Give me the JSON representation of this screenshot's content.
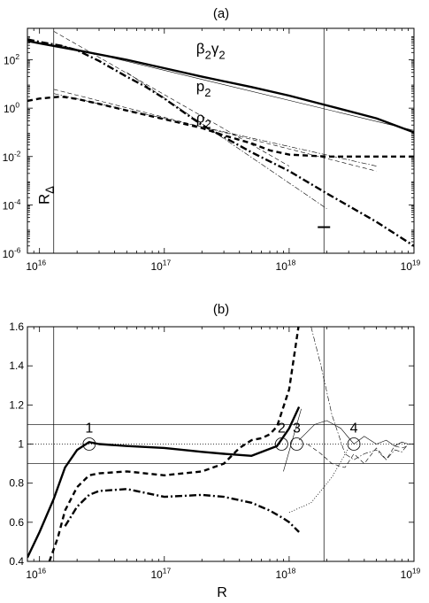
{
  "chart_data": [
    {
      "type": "line",
      "title": "(a)",
      "xscale": "log",
      "yscale": "log",
      "xlim": [
        8000000000000000.0,
        1e+19
      ],
      "ylim": [
        1e-06,
        2000.0
      ],
      "xticks": [
        1e+16,
        1e+17,
        1e+18,
        1e+19
      ],
      "xtick_labels": [
        [
          "10",
          "16"
        ],
        [
          "10",
          "17"
        ],
        [
          "10",
          "18"
        ],
        [
          "10",
          "19"
        ]
      ],
      "yticks": [
        1e-06,
        0.0001,
        0.01,
        1,
        100
      ],
      "ytick_labels": [
        [
          "10",
          "-6"
        ],
        [
          "10",
          "-4"
        ],
        [
          "10",
          "-2"
        ],
        [
          "10",
          "0"
        ],
        [
          "10",
          "2"
        ]
      ],
      "vlines": [
        1.3e+16,
        1.9e+18
      ],
      "series": [
        {
          "name": "β2γ2",
          "style": "solid-thick",
          "x": [
            8000000000000000.0,
            1e+16,
            2e+16,
            5e+16,
            1e+17,
            2e+17,
            5e+17,
            1e+18,
            2e+18,
            5e+18,
            1e+19
          ],
          "y": [
            600,
            480,
            250,
            100,
            45,
            20,
            7.5,
            3.3,
            1.3,
            0.38,
            0.1
          ]
        },
        {
          "name": "β2γ2 asymptote",
          "style": "thin",
          "x": [
            1.4e+16,
            1e+19
          ],
          "y": [
            420,
            0.12
          ]
        },
        {
          "name": "p2",
          "style": "dashdot-thick",
          "x": [
            8000000000000000.0,
            1e+16,
            1.5e+16,
            2e+16,
            3e+16,
            5e+16,
            7e+16,
            1e+17,
            2e+17,
            5e+17,
            1e+18,
            2e+18,
            5e+18,
            1e+19
          ],
          "y": [
            700,
            550,
            380,
            250,
            90,
            20,
            8,
            2.5,
            0.2,
            0.015,
            0.0025,
            0.0003,
            2e-05,
            2e-06
          ]
        },
        {
          "name": "p2 asymptote",
          "style": "thin-dash",
          "x": [
            1.3e+16,
            1e+18
          ],
          "y": [
            1500,
            0.004
          ]
        },
        {
          "name": "p2 asymptote 2",
          "style": "thin-dashdot",
          "x": [
            5e+16,
            2e+18
          ],
          "y": [
            30,
            7e-05
          ]
        },
        {
          "name": "ρ2",
          "style": "dashed-thick",
          "x": [
            8000000000000000.0,
            1e+16,
            1.5e+16,
            2e+16,
            3e+16,
            5e+16,
            1e+17,
            2e+17,
            3e+17,
            5e+17,
            7e+17,
            1e+18,
            2e+18,
            5e+18,
            1e+19
          ],
          "y": [
            2,
            2.5,
            3,
            2.4,
            1.5,
            0.8,
            0.35,
            0.15,
            0.075,
            0.035,
            0.018,
            0.012,
            0.01,
            0.01,
            0.01
          ]
        },
        {
          "name": "ρ2 asymptote",
          "style": "thin-dash",
          "x": [
            1.3e+16,
            5e+18
          ],
          "y": [
            6,
            0.0025
          ]
        },
        {
          "name": "ρ2 asymptote 2",
          "style": "thin-dashdot",
          "x": [
            1.3e+16,
            5e+18
          ],
          "y": [
            4,
            0.004
          ]
        }
      ],
      "labels": [
        {
          "text": "β",
          "sub": "2",
          "text2": "γ",
          "sub2": "2",
          "x": 1.8e+17,
          "y": 180
        },
        {
          "text": "p",
          "sub": "2",
          "x": 1.8e+17,
          "y": 5
        },
        {
          "text": "ρ",
          "sub": "2",
          "x": 1.8e+17,
          "y": 0.25
        }
      ],
      "marker": {
        "x": 1.9e+18,
        "y": 1.2e-05
      },
      "rdelta_label": {
        "text": "R",
        "sub": "Δ"
      }
    },
    {
      "type": "line",
      "title": "(b)",
      "xlabel": "R",
      "xscale": "log",
      "yscale": "linear",
      "xlim": [
        8000000000000000.0,
        1e+19
      ],
      "ylim": [
        0.4,
        1.6
      ],
      "xticks": [
        1e+16,
        1e+17,
        1e+18,
        1e+19
      ],
      "xtick_labels": [
        [
          "10",
          "16"
        ],
        [
          "10",
          "17"
        ],
        [
          "10",
          "18"
        ],
        [
          "10",
          "19"
        ]
      ],
      "yticks": [
        0.4,
        0.6,
        0.8,
        1.0,
        1.2,
        1.4,
        1.6
      ],
      "ytick_labels": [
        "0.4",
        "0.6",
        "0.8",
        "1",
        "1.2",
        "1.4",
        "1.6"
      ],
      "vlines": [
        1.3e+16,
        1.9e+18
      ],
      "hlines": [
        {
          "y": 1.1,
          "style": "thin"
        },
        {
          "y": 1.0,
          "style": "dotted"
        },
        {
          "y": 0.9,
          "style": "thin"
        }
      ],
      "series": [
        {
          "name": "solid",
          "style": "solid-thick",
          "x": [
            8000000000000000.0,
            1e+16,
            1.3e+16,
            1.6e+16,
            2e+16,
            2.5e+16,
            3e+16,
            5e+16,
            1e+17,
            2e+17,
            3e+17,
            5e+17,
            8e+17,
            1e+18,
            1.2e+18
          ],
          "y": [
            0.42,
            0.55,
            0.72,
            0.88,
            0.97,
            1.01,
            1.0,
            0.99,
            0.98,
            0.96,
            0.95,
            0.94,
            0.99,
            1.08,
            1.19
          ]
        },
        {
          "name": "dashed",
          "style": "dashed-thick",
          "x": [
            1.2e+16,
            1.4e+16,
            1.6e+16,
            2e+16,
            2.5e+16,
            3e+16,
            5e+16,
            1e+17,
            2e+17,
            3e+17,
            4e+17,
            5e+17,
            6e+17,
            7e+17,
            8e+17,
            1e+18,
            1.2e+18
          ],
          "y": [
            0.4,
            0.52,
            0.66,
            0.78,
            0.84,
            0.85,
            0.86,
            0.84,
            0.86,
            0.9,
            0.98,
            1.02,
            1.03,
            1.05,
            1.09,
            1.28,
            1.62
          ]
        },
        {
          "name": "dashdot",
          "style": "dashdot-thick",
          "x": [
            1.6e+16,
            2e+16,
            2.5e+16,
            3e+16,
            5e+16,
            1e+17,
            2e+17,
            3e+17,
            5e+17,
            7e+17,
            9e+17,
            1e+18,
            1.2e+18
          ],
          "y": [
            0.58,
            0.68,
            0.74,
            0.76,
            0.77,
            0.73,
            0.74,
            0.73,
            0.7,
            0.66,
            0.62,
            0.6,
            0.55
          ]
        },
        {
          "name": "thin dashdot",
          "style": "thin-dashdot",
          "x": [
            1.5e+18,
            1.8e+18,
            2.2e+18,
            2.8e+18,
            3.3e+18,
            4e+18,
            5e+18,
            6e+18,
            7e+18,
            8e+18,
            9e+18
          ],
          "y": [
            1.6,
            1.4,
            1.15,
            0.95,
            0.92,
            0.95,
            0.97,
            0.92,
            0.97,
            0.96,
            1.0
          ]
        },
        {
          "name": "thin dashed",
          "style": "thin-dash",
          "x": [
            1.4e+18,
            1.8e+18,
            2.2e+18,
            2.8e+18,
            3.3e+18,
            4e+18,
            5e+18,
            6e+18,
            7e+18,
            8e+18,
            9e+18
          ],
          "y": [
            1.0,
            0.95,
            0.9,
            0.88,
            0.95,
            0.9,
            0.98,
            0.92,
            0.99,
            0.98,
            0.99
          ]
        },
        {
          "name": "thin solid",
          "style": "thin",
          "x": [
            1.2e+18,
            1.6e+18,
            2e+18,
            2.6e+18,
            3.3e+18,
            4e+18,
            5e+18,
            6e+18,
            7e+18,
            8e+18,
            9e+18
          ],
          "y": [
            1.02,
            1.1,
            1.12,
            1.08,
            1.0,
            1.04,
            1.0,
            1.02,
            0.99,
            1.01,
            1.0
          ]
        },
        {
          "name": "thin dotted",
          "style": "dotted",
          "x": [
            1e+18,
            1.5e+18,
            2.2e+18,
            3e+18
          ],
          "y": [
            0.65,
            0.7,
            0.83,
            0.98
          ]
        },
        {
          "name": "thin tangent",
          "style": "thin",
          "x": [
            9e+17,
            1.25e+18
          ],
          "y": [
            0.86,
            1.18
          ]
        }
      ],
      "circles": [
        {
          "label": "1",
          "x": 2.5e+16,
          "y": 1.0
        },
        {
          "label": "2",
          "x": 8.7e+17,
          "y": 1.0
        },
        {
          "label": "3",
          "x": 1.15e+18,
          "y": 1.0
        },
        {
          "label": "4",
          "x": 3.3e+18,
          "y": 1.0
        }
      ]
    }
  ]
}
